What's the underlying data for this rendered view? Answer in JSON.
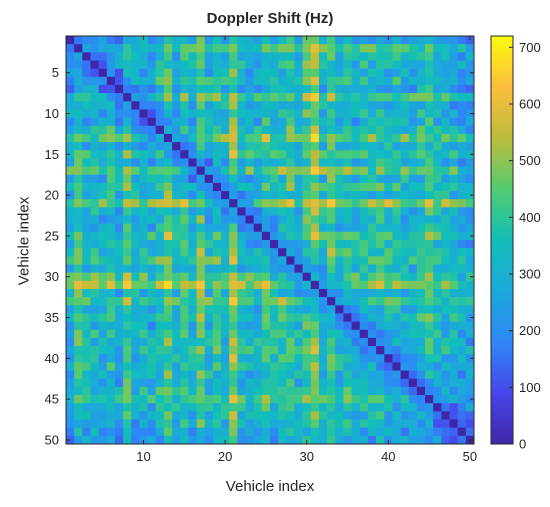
{
  "chart_data": {
    "type": "heatmap",
    "title": "Doppler Shift (Hz)",
    "xlabel": "Vehicle index",
    "ylabel": "Vehicle index",
    "rows": 50,
    "cols": 50,
    "xticks": [
      "10",
      "20",
      "30",
      "40",
      "50"
    ],
    "yticks": [
      "5",
      "10",
      "15",
      "20",
      "25",
      "30",
      "35",
      "40",
      "45",
      "50"
    ],
    "colorbar": {
      "min": 0,
      "max": 720,
      "ticks": [
        "0",
        "100",
        "200",
        "300",
        "400",
        "500",
        "600",
        "700"
      ]
    },
    "colormap": "parula",
    "diagonal_value": 0,
    "vehicle_profile": [
      220,
      480,
      300,
      330,
      260,
      350,
      230,
      470,
      290,
      310,
      250,
      380,
      560,
      280,
      440,
      300,
      560,
      330,
      400,
      350,
      650,
      320,
      290,
      300,
      480,
      330,
      400,
      450,
      300,
      520,
      640,
      330,
      520,
      300,
      420,
      260,
      360,
      320,
      400,
      330,
      350,
      300,
      280,
      360,
      470,
      330,
      300,
      230,
      180,
      170
    ]
  }
}
